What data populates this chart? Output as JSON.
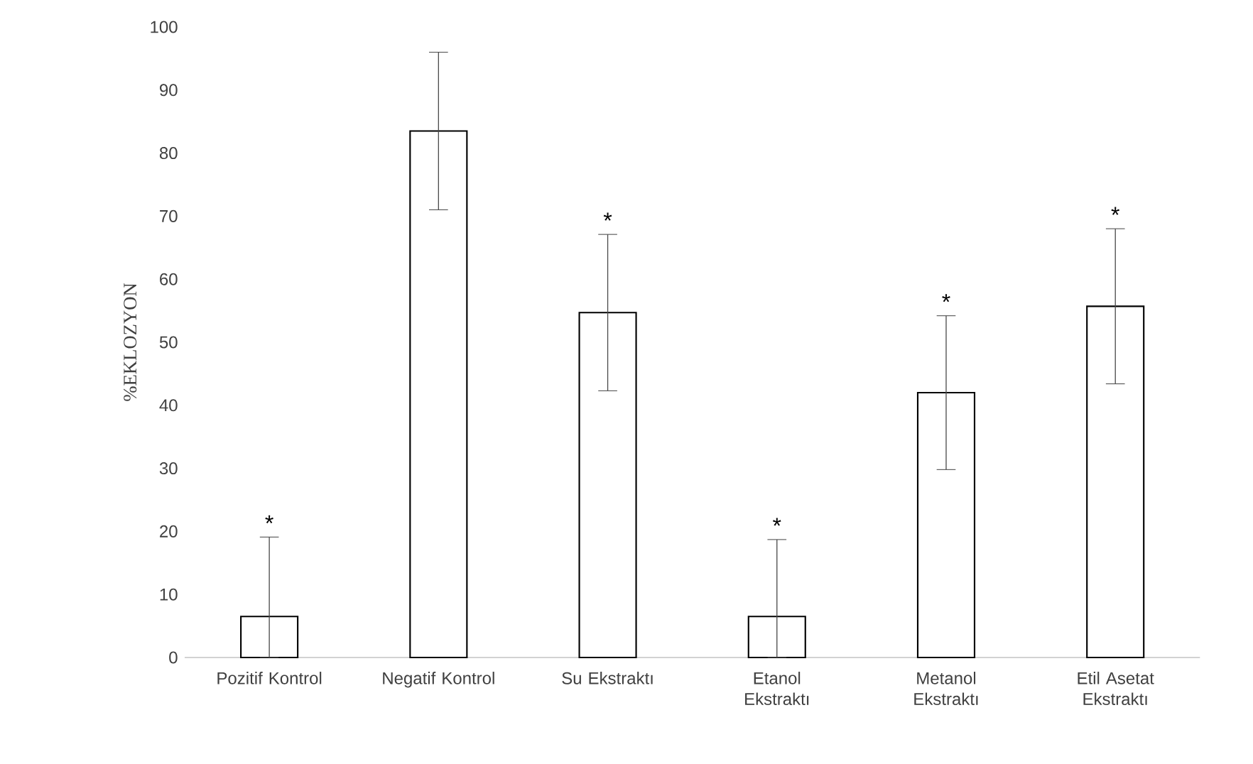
{
  "chart_data": {
    "type": "bar",
    "ylabel": "%EKLOZYON",
    "categories": [
      "Pozitif Kontrol",
      "Negatif Kontrol",
      "Su Ekstraktı",
      "Etanol Ekstraktı",
      "Metanol Ekstraktı",
      "Etil Asetat Ekstraktı"
    ],
    "values": [
      6.5,
      83.5,
      54.7,
      6.5,
      42,
      55.7
    ],
    "errors": [
      [
        0,
        19.1
      ],
      12.5,
      12.4,
      [
        0,
        18.7
      ],
      12.2,
      12.3
    ],
    "color": "#000000",
    "ylim": [
      0,
      100
    ],
    "yticks": [
      0,
      10,
      20,
      30,
      40,
      50,
      60,
      70,
      80,
      90,
      100
    ],
    "grid": false,
    "annotations": [
      "*",
      "*",
      "*",
      "*",
      "*"
    ]
  }
}
